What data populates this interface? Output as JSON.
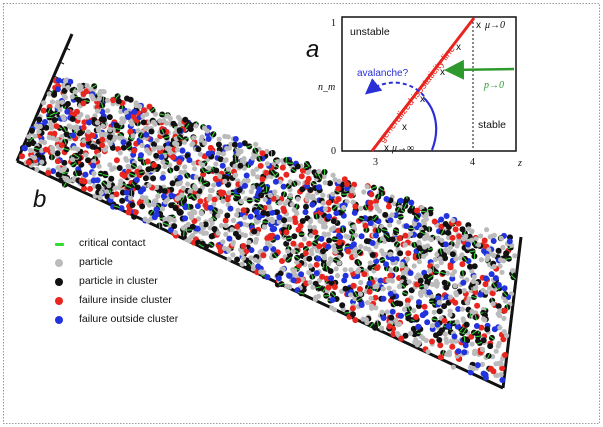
{
  "panel_a": {
    "letter": "a",
    "region_unstable": "unstable",
    "region_stable": "stable",
    "y_axis_label": "n_m",
    "x_axis_label": "z",
    "y_ticks": [
      "1",
      "0"
    ],
    "x_ticks": [
      "3",
      "4"
    ],
    "isostaticity_label": "generalized isostaticity line",
    "avalanche_label": "avalanche?",
    "pressure_label": "p→0",
    "mu_zero_label": "μ→0",
    "mu_inf_label": "μ→∞",
    "cross_marker": "x",
    "colors": {
      "isostaticity": "#e8251f",
      "avalanche": "#2a2fd6",
      "pressure": "#2e9a2e",
      "axis": "#111111"
    }
  },
  "panel_b": {
    "letter": "b",
    "legend": [
      {
        "label": "critical contact",
        "color": "#33dd33",
        "shape": "line"
      },
      {
        "label": "particle",
        "color": "#bbbbbb",
        "shape": "dot"
      },
      {
        "label": "particle in cluster",
        "color": "#111111",
        "shape": "dot"
      },
      {
        "label": "failure inside cluster",
        "color": "#e8251f",
        "shape": "dot"
      },
      {
        "label": "failure outside cluster",
        "color": "#2233dd",
        "shape": "dot"
      }
    ]
  }
}
